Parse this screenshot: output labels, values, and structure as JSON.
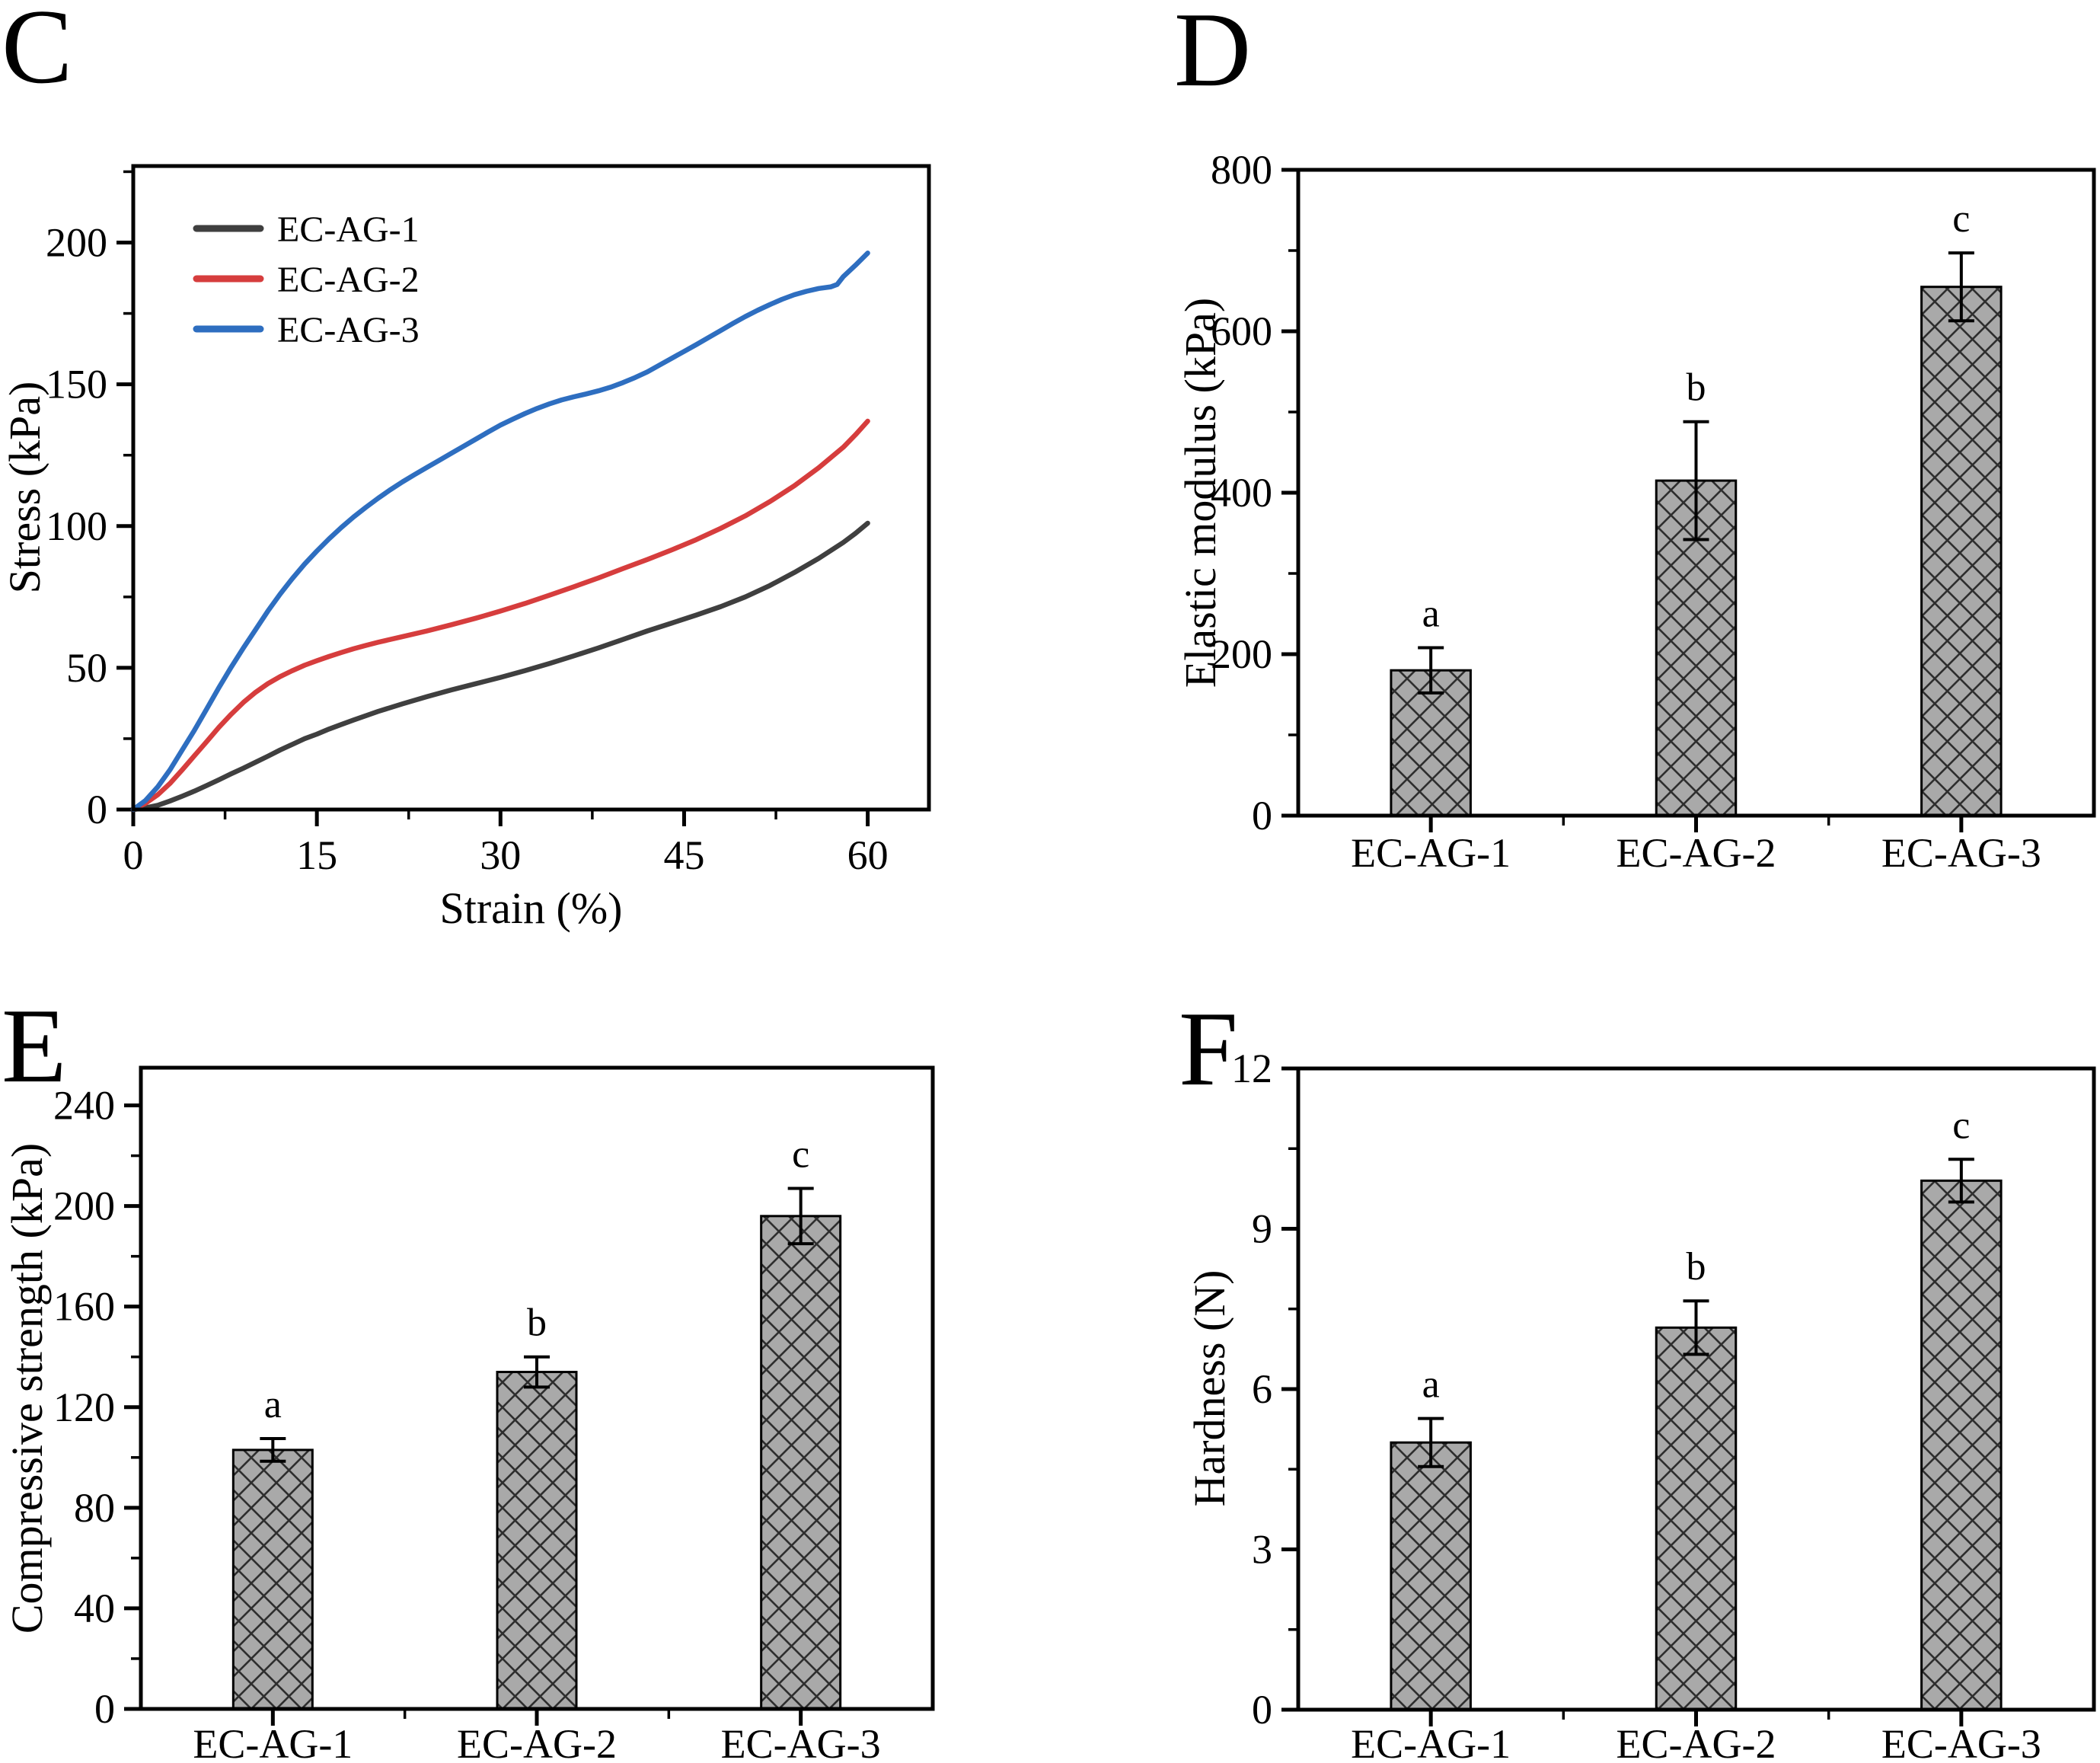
{
  "figure_title": "",
  "chart_data": [
    {
      "id": "C",
      "label": "C",
      "type": "line",
      "x_axis": {
        "title": "Strain (%)",
        "ticks": [
          0,
          15,
          30,
          45,
          60
        ],
        "minor_step": 7.5,
        "range": [
          0,
          65
        ]
      },
      "y_axis": {
        "title": "Stress (kPa)",
        "ticks": [
          0,
          50,
          100,
          150,
          200
        ],
        "minor_step": 25,
        "range": [
          0,
          227
        ]
      },
      "legend_position": "top-left",
      "grid": false,
      "series": [
        {
          "name": "EC-AG-1",
          "color": "#3f3f3f",
          "points": [
            [
              0,
              0
            ],
            [
              1,
              0.6
            ],
            [
              2,
              1.5
            ],
            [
              3,
              3
            ],
            [
              4,
              4.7
            ],
            [
              5,
              6.5
            ],
            [
              6,
              8.5
            ],
            [
              7,
              10.5
            ],
            [
              8,
              12.6
            ],
            [
              9,
              14.6
            ],
            [
              10,
              16.7
            ],
            [
              11,
              18.8
            ],
            [
              12,
              21
            ],
            [
              13,
              23
            ],
            [
              14,
              25
            ],
            [
              15,
              26.6
            ],
            [
              16,
              28.4
            ],
            [
              17,
              30
            ],
            [
              18,
              31.6
            ],
            [
              19,
              33.1
            ],
            [
              20,
              34.6
            ],
            [
              22,
              37.3
            ],
            [
              24,
              39.8
            ],
            [
              26,
              42.2
            ],
            [
              28,
              44.4
            ],
            [
              30,
              46.6
            ],
            [
              32,
              49
            ],
            [
              34,
              51.5
            ],
            [
              36,
              54.2
            ],
            [
              38,
              57
            ],
            [
              40,
              60
            ],
            [
              42,
              63
            ],
            [
              44,
              65.8
            ],
            [
              46,
              68.6
            ],
            [
              48,
              71.6
            ],
            [
              50,
              75
            ],
            [
              52,
              79
            ],
            [
              54,
              83.6
            ],
            [
              56,
              88.6
            ],
            [
              58,
              94.2
            ],
            [
              59,
              97.4
            ],
            [
              60,
              101
            ]
          ]
        },
        {
          "name": "EC-AG-2",
          "color": "#d63d3d",
          "points": [
            [
              0,
              0
            ],
            [
              1,
              2.2
            ],
            [
              2,
              5.2
            ],
            [
              3,
              9.2
            ],
            [
              4,
              14
            ],
            [
              5,
              19
            ],
            [
              6,
              24
            ],
            [
              7,
              29
            ],
            [
              8,
              33.6
            ],
            [
              9,
              37.8
            ],
            [
              10,
              41.4
            ],
            [
              11,
              44.4
            ],
            [
              12,
              46.9
            ],
            [
              13,
              49
            ],
            [
              14,
              50.9
            ],
            [
              15,
              52.5
            ],
            [
              16,
              54
            ],
            [
              17,
              55.4
            ],
            [
              18,
              56.7
            ],
            [
              19,
              57.9
            ],
            [
              20,
              59
            ],
            [
              22,
              61
            ],
            [
              24,
              63
            ],
            [
              26,
              65.2
            ],
            [
              28,
              67.5
            ],
            [
              30,
              70
            ],
            [
              32,
              72.7
            ],
            [
              34,
              75.6
            ],
            [
              36,
              78.6
            ],
            [
              38,
              81.7
            ],
            [
              40,
              85
            ],
            [
              42,
              88.2
            ],
            [
              44,
              91.6
            ],
            [
              46,
              95.2
            ],
            [
              48,
              99.2
            ],
            [
              50,
              103.6
            ],
            [
              52,
              108.6
            ],
            [
              54,
              114.2
            ],
            [
              56,
              120.6
            ],
            [
              58,
              127.8
            ],
            [
              59,
              132.2
            ],
            [
              60,
              137
            ]
          ]
        },
        {
          "name": "EC-AG-3",
          "color": "#2e6ec0",
          "points": [
            [
              0,
              0
            ],
            [
              1,
              3.2
            ],
            [
              2,
              8
            ],
            [
              3,
              14
            ],
            [
              4,
              21
            ],
            [
              5,
              28
            ],
            [
              6,
              35.5
            ],
            [
              7,
              43
            ],
            [
              8,
              50.2
            ],
            [
              9,
              57
            ],
            [
              10,
              63.5
            ],
            [
              11,
              70
            ],
            [
              12,
              76
            ],
            [
              13,
              81.5
            ],
            [
              14,
              86.6
            ],
            [
              15,
              91.2
            ],
            [
              16,
              95.5
            ],
            [
              17,
              99.5
            ],
            [
              18,
              103.2
            ],
            [
              19,
              106.6
            ],
            [
              20,
              109.8
            ],
            [
              21,
              112.8
            ],
            [
              22,
              115.6
            ],
            [
              23,
              118.2
            ],
            [
              24,
              120.7
            ],
            [
              25,
              123.2
            ],
            [
              26,
              125.7
            ],
            [
              27,
              128.2
            ],
            [
              28,
              130.7
            ],
            [
              29,
              133.2
            ],
            [
              30,
              135.6
            ],
            [
              31,
              137.7
            ],
            [
              32,
              139.7
            ],
            [
              33,
              141.5
            ],
            [
              34,
              143.1
            ],
            [
              35,
              144.5
            ],
            [
              36,
              145.6
            ],
            [
              37,
              146.6
            ],
            [
              38,
              147.7
            ],
            [
              39,
              149
            ],
            [
              40,
              150.6
            ],
            [
              41,
              152.4
            ],
            [
              42,
              154.4
            ],
            [
              43,
              156.8
            ],
            [
              44,
              159.2
            ],
            [
              45,
              161.6
            ],
            [
              46,
              164
            ],
            [
              47,
              166.5
            ],
            [
              48,
              169
            ],
            [
              49,
              171.5
            ],
            [
              50,
              173.9
            ],
            [
              51,
              176.1
            ],
            [
              52,
              178.1
            ],
            [
              53,
              180
            ],
            [
              54,
              181.6
            ],
            [
              55,
              182.8
            ],
            [
              56,
              183.8
            ],
            [
              57,
              184.4
            ],
            [
              57.5,
              185.2
            ],
            [
              58,
              188
            ],
            [
              59,
              192
            ],
            [
              60,
              196.3
            ]
          ]
        }
      ]
    },
    {
      "id": "D",
      "label": "D",
      "type": "bar",
      "y_axis": {
        "title": "Elastic modulus (kPa)",
        "ticks": [
          0,
          200,
          400,
          600,
          800
        ],
        "minor_step": 100,
        "range": [
          0,
          800
        ]
      },
      "categories": [
        "EC-AG-1",
        "EC-AG-2",
        "EC-AG-3"
      ],
      "values": [
        180,
        415,
        655
      ],
      "errors": [
        28,
        73,
        42
      ],
      "letters": [
        "a",
        "b",
        "c"
      ],
      "bar_fill": "#a9a9a9",
      "hatch_color": "#2e2e2e"
    },
    {
      "id": "E",
      "label": "E",
      "type": "bar",
      "y_axis": {
        "title": "Compressive strength (kPa)",
        "ticks": [
          0,
          40,
          80,
          120,
          160,
          200,
          240
        ],
        "minor_step": 20,
        "range": [
          0,
          255
        ]
      },
      "categories": [
        "EC-AG-1",
        "EC-AG-2",
        "EC-AG-3"
      ],
      "values": [
        103,
        134,
        196
      ],
      "errors": [
        4.5,
        6,
        11
      ],
      "letters": [
        "a",
        "b",
        "c"
      ],
      "bar_fill": "#a9a9a9",
      "hatch_color": "#2e2e2e"
    },
    {
      "id": "F",
      "label": "F",
      "type": "bar",
      "y_axis": {
        "title": "Hardness (N)",
        "ticks": [
          0,
          3,
          6,
          9,
          12
        ],
        "minor_step": 1.5,
        "range": [
          0,
          12
        ]
      },
      "categories": [
        "EC-AG-1",
        "EC-AG-2",
        "EC-AG-3"
      ],
      "values": [
        5.0,
        7.15,
        9.9
      ],
      "errors": [
        0.45,
        0.5,
        0.4
      ],
      "letters": [
        "a",
        "b",
        "c"
      ],
      "bar_fill": "#a9a9a9",
      "hatch_color": "#2e2e2e"
    }
  ]
}
